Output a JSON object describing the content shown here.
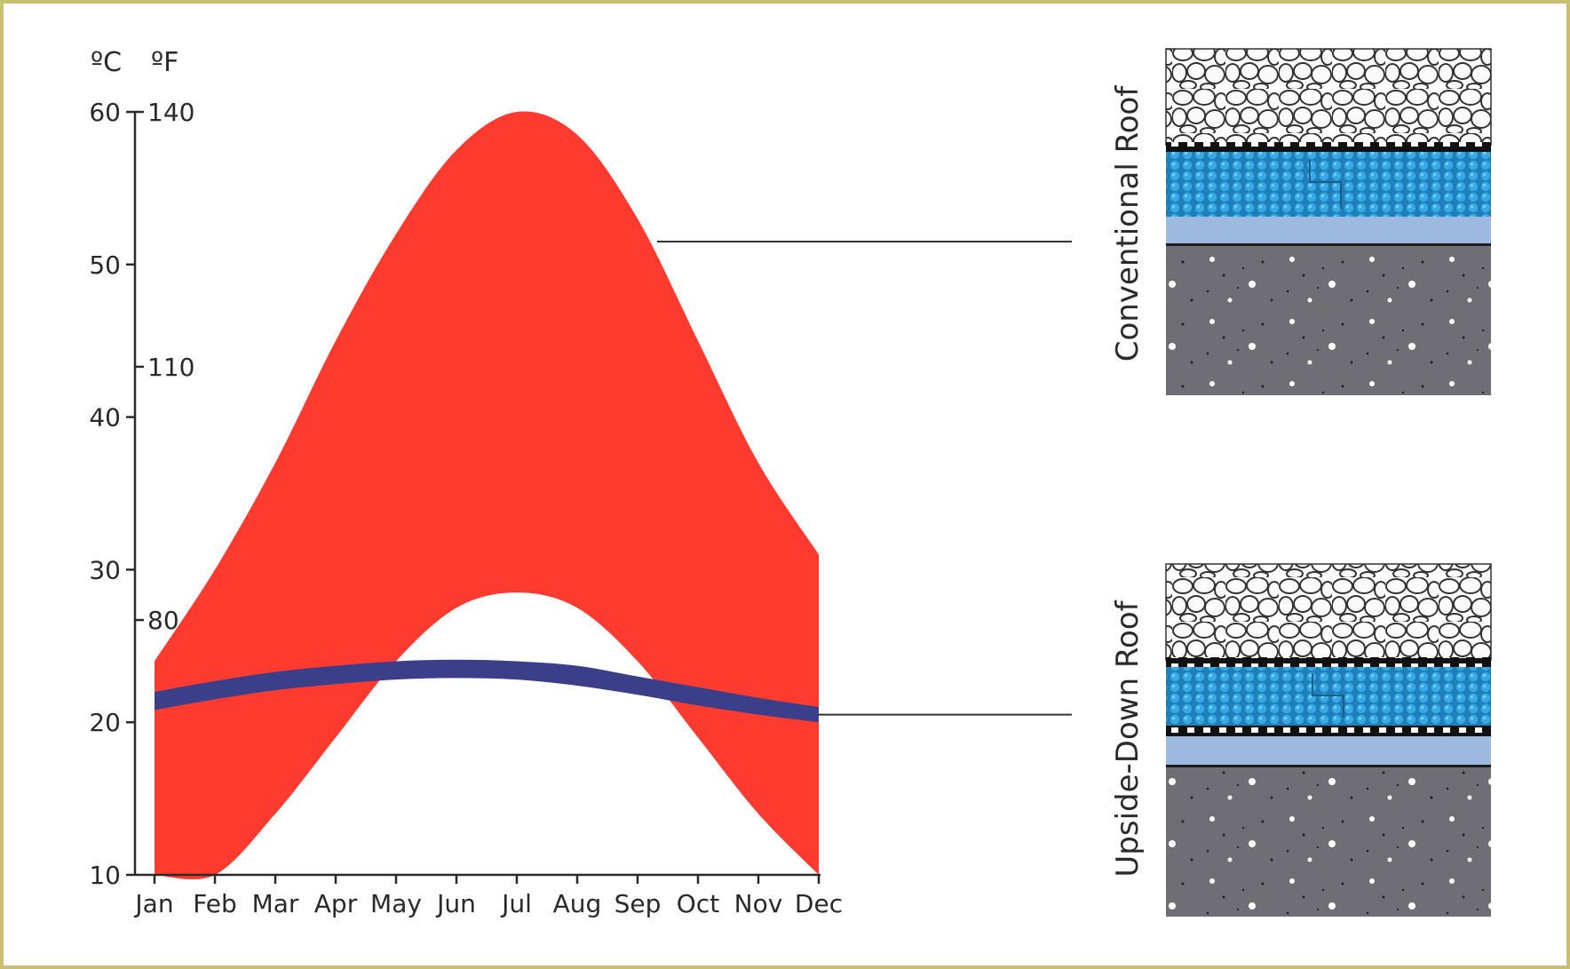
{
  "chart_data": {
    "type": "area",
    "title": "",
    "xlabel": "",
    "ylabel": "",
    "axis_units": {
      "celsius": "ºC",
      "fahrenheit": "ºF"
    },
    "categories": [
      "Jan",
      "Feb",
      "Mar",
      "Apr",
      "May",
      "Jun",
      "Jul",
      "Aug",
      "Sep",
      "Oct",
      "Nov",
      "Dec"
    ],
    "y_celsius_ticks": [
      "10",
      "20",
      "30",
      "40",
      "50",
      "60"
    ],
    "y_fahrenheit_ticks": [
      {
        "label": "80",
        "celsius": 26.7
      },
      {
        "label": "110",
        "celsius": 43.3
      },
      {
        "label": "140",
        "celsius": 60
      }
    ],
    "ylim": [
      10,
      60
    ],
    "series": [
      {
        "kind": "band",
        "color": "#ff3b30",
        "high": [
          24,
          30,
          37,
          45,
          52,
          57.5,
          60,
          58.5,
          53,
          45,
          37,
          31
        ],
        "low": [
          10,
          10,
          14,
          19,
          24,
          27.5,
          28.5,
          27.5,
          24,
          19,
          14,
          10
        ]
      },
      {
        "kind": "band",
        "color": "#3b3f8a",
        "high": [
          22,
          22.7,
          23.3,
          23.7,
          24,
          24.1,
          24,
          23.7,
          23,
          22.3,
          21.6,
          21
        ],
        "low": [
          20.8,
          21.5,
          22.1,
          22.5,
          22.8,
          22.9,
          22.8,
          22.4,
          21.8,
          21.1,
          20.5,
          20
        ]
      }
    ],
    "annotations": [
      {
        "label": "Conventional Roof",
        "points_to_month": "Sep",
        "celsius": 51.5
      },
      {
        "label": "Upside-Down Roof",
        "points_to_month": "Dec",
        "celsius": 20.5
      }
    ]
  },
  "diagrams": {
    "conventional": {
      "label": "Conventional Roof",
      "icon": "conventional-roof-cross-section"
    },
    "upside_down": {
      "label": "Upside-Down Roof",
      "icon": "upside-down-roof-cross-section"
    }
  },
  "colors": {
    "band_red": "#ff3b30",
    "band_blue": "#3b3f8a",
    "insulation": "#2f9fdc",
    "membrane": "#9db9df",
    "concrete": "#6e6e74",
    "frame": "#c8bf73"
  }
}
